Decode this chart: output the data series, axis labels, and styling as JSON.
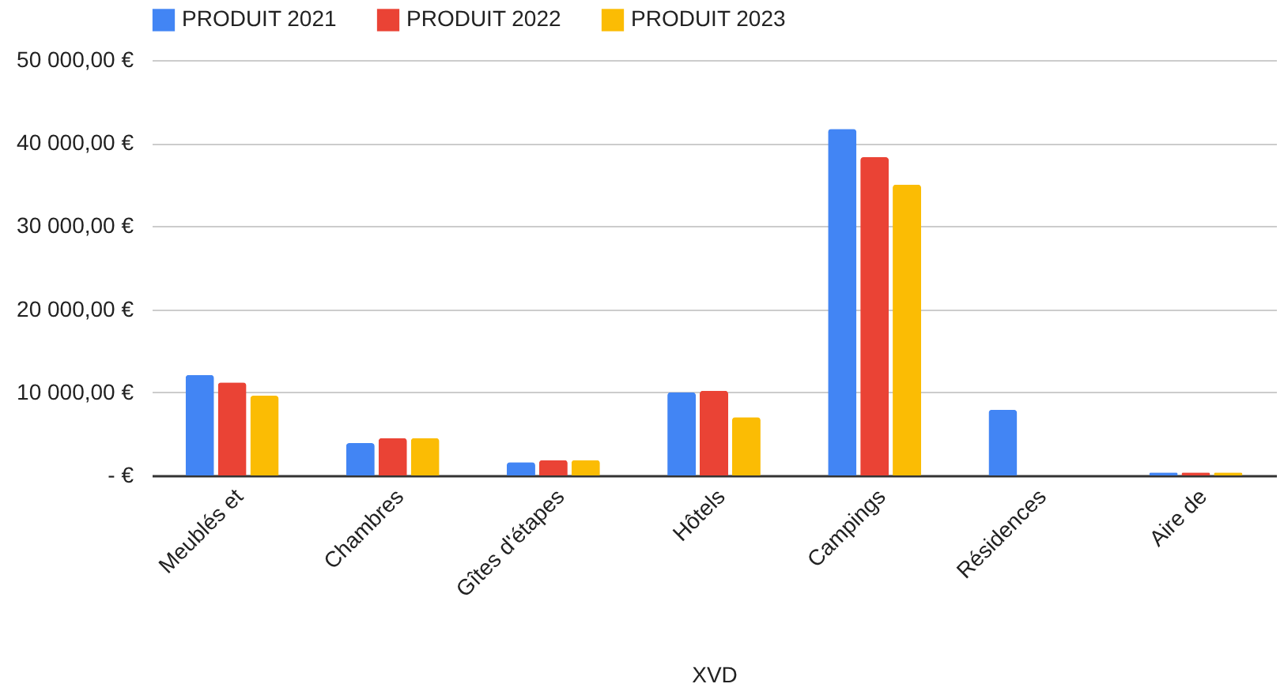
{
  "chart_data": {
    "type": "bar",
    "xlabel": "XVD",
    "categories": [
      "Meublés et",
      "Chambres",
      "Gîtes d'étapes",
      "Hôtels",
      "Campings",
      "Résidences",
      "Aire de"
    ],
    "series": [
      {
        "name": "PRODUIT 2021",
        "color": "#4285f4",
        "values": [
          12100,
          3900,
          1600,
          10000,
          41700,
          7900,
          350
        ]
      },
      {
        "name": "PRODUIT 2022",
        "color": "#ea4335",
        "values": [
          11200,
          4500,
          1850,
          10200,
          38300,
          0,
          350
        ]
      },
      {
        "name": "PRODUIT 2023",
        "color": "#fbbc04",
        "values": [
          9600,
          4500,
          1850,
          7000,
          35000,
          0,
          350
        ]
      }
    ],
    "ylim": [
      0,
      50000
    ],
    "yticks": [
      {
        "value": 0,
        "label": "-   €"
      },
      {
        "value": 10000,
        "label": "10 000,00 €"
      },
      {
        "value": 20000,
        "label": "20 000,00 €"
      },
      {
        "value": 30000,
        "label": "30 000,00 €"
      },
      {
        "value": 40000,
        "label": "40 000,00 €"
      },
      {
        "value": 50000,
        "label": "50 000,00 €"
      }
    ],
    "grid": "y",
    "legend": "top"
  }
}
